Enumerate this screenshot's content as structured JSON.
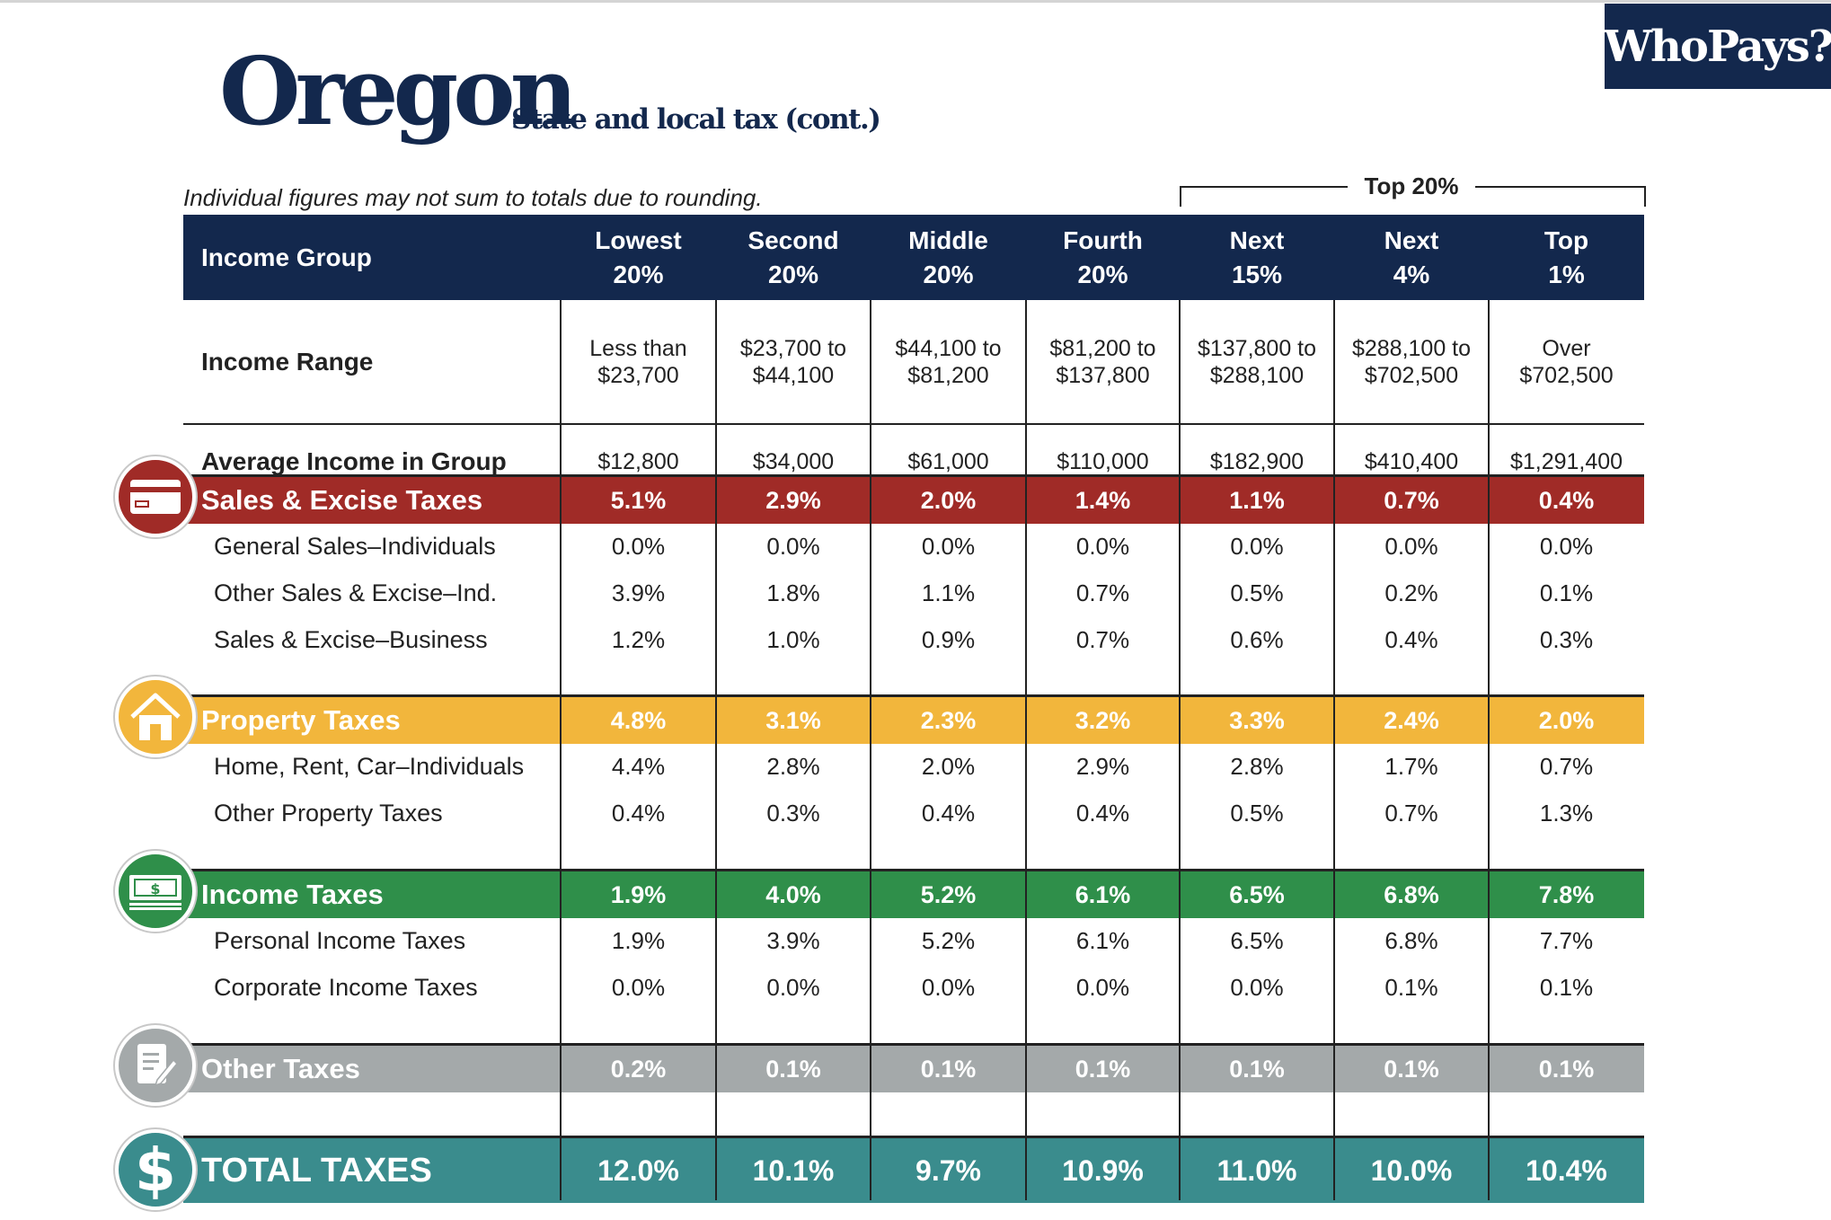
{
  "brand": "WhoPays?",
  "title": "Oregon",
  "subtitle": "State and local tax (cont.)",
  "note": "Individual figures may not sum to totals due to rounding.",
  "top_group_label": "Top 20%",
  "header": {
    "label": "Income Group",
    "groups": [
      {
        "line1": "Lowest",
        "line2": "20%"
      },
      {
        "line1": "Second",
        "line2": "20%"
      },
      {
        "line1": "Middle",
        "line2": "20%"
      },
      {
        "line1": "Fourth",
        "line2": "20%"
      },
      {
        "line1": "Next",
        "line2": "15%"
      },
      {
        "line1": "Next",
        "line2": "4%"
      },
      {
        "line1": "Top",
        "line2": "1%"
      }
    ]
  },
  "income_range": {
    "label": "Income Range",
    "values": [
      {
        "line1": "Less than",
        "line2": "$23,700"
      },
      {
        "line1": "$23,700 to",
        "line2": "$44,100"
      },
      {
        "line1": "$44,100 to",
        "line2": "$81,200"
      },
      {
        "line1": "$81,200 to",
        "line2": "$137,800"
      },
      {
        "line1": "$137,800 to",
        "line2": "$288,100"
      },
      {
        "line1": "$288,100 to",
        "line2": "$702,500"
      },
      {
        "line1": "Over",
        "line2": "$702,500"
      }
    ]
  },
  "average_income": {
    "label": "Average Income in Group",
    "values": [
      "$12,800",
      "$34,000",
      "$61,000",
      "$110,000",
      "$182,900",
      "$410,400",
      "$1,291,400"
    ]
  },
  "sales": {
    "label": "Sales & Excise Taxes",
    "values": [
      "5.1%",
      "2.9%",
      "2.0%",
      "1.4%",
      "1.1%",
      "0.7%",
      "0.4%"
    ],
    "icon": "credit-card-icon",
    "color": "#a02b27",
    "rows": [
      {
        "label": "General Sales–Individuals",
        "values": [
          "0.0%",
          "0.0%",
          "0.0%",
          "0.0%",
          "0.0%",
          "0.0%",
          "0.0%"
        ]
      },
      {
        "label": "Other Sales & Excise–Ind.",
        "values": [
          "3.9%",
          "1.8%",
          "1.1%",
          "0.7%",
          "0.5%",
          "0.2%",
          "0.1%"
        ]
      },
      {
        "label": "Sales & Excise–Business",
        "values": [
          "1.2%",
          "1.0%",
          "0.9%",
          "0.7%",
          "0.6%",
          "0.4%",
          "0.3%"
        ]
      }
    ]
  },
  "property": {
    "label": "Property Taxes",
    "values": [
      "4.8%",
      "3.1%",
      "2.3%",
      "3.2%",
      "3.3%",
      "2.4%",
      "2.0%"
    ],
    "icon": "house-icon",
    "color": "#f2b63c",
    "rows": [
      {
        "label": "Home, Rent, Car–Individuals",
        "values": [
          "4.4%",
          "2.8%",
          "2.0%",
          "2.9%",
          "2.8%",
          "1.7%",
          "0.7%"
        ]
      },
      {
        "label": "Other Property Taxes",
        "values": [
          "0.4%",
          "0.3%",
          "0.4%",
          "0.4%",
          "0.5%",
          "0.7%",
          "1.3%"
        ]
      }
    ]
  },
  "income_tax": {
    "label": "Income Taxes",
    "values": [
      "1.9%",
      "4.0%",
      "5.2%",
      "6.1%",
      "6.5%",
      "6.8%",
      "7.8%"
    ],
    "icon": "money-bill-icon",
    "color": "#2f8f4a",
    "rows": [
      {
        "label": "Personal Income Taxes",
        "values": [
          "1.9%",
          "3.9%",
          "5.2%",
          "6.1%",
          "6.5%",
          "6.8%",
          "7.7%"
        ]
      },
      {
        "label": "Corporate Income Taxes",
        "values": [
          "0.0%",
          "0.0%",
          "0.0%",
          "0.0%",
          "0.0%",
          "0.1%",
          "0.1%"
        ]
      }
    ]
  },
  "other": {
    "label": "Other Taxes",
    "values": [
      "0.2%",
      "0.1%",
      "0.1%",
      "0.1%",
      "0.1%",
      "0.1%",
      "0.1%"
    ],
    "icon": "document-pen-icon",
    "color": "#a4a9aa"
  },
  "total": {
    "label": "TOTAL TAXES",
    "values": [
      "12.0%",
      "10.1%",
      "9.7%",
      "10.9%",
      "11.0%",
      "10.0%",
      "10.4%"
    ],
    "icon": "dollar-sign-icon",
    "color": "#3a8c8d"
  },
  "colors": {
    "navy": "#13284d"
  }
}
